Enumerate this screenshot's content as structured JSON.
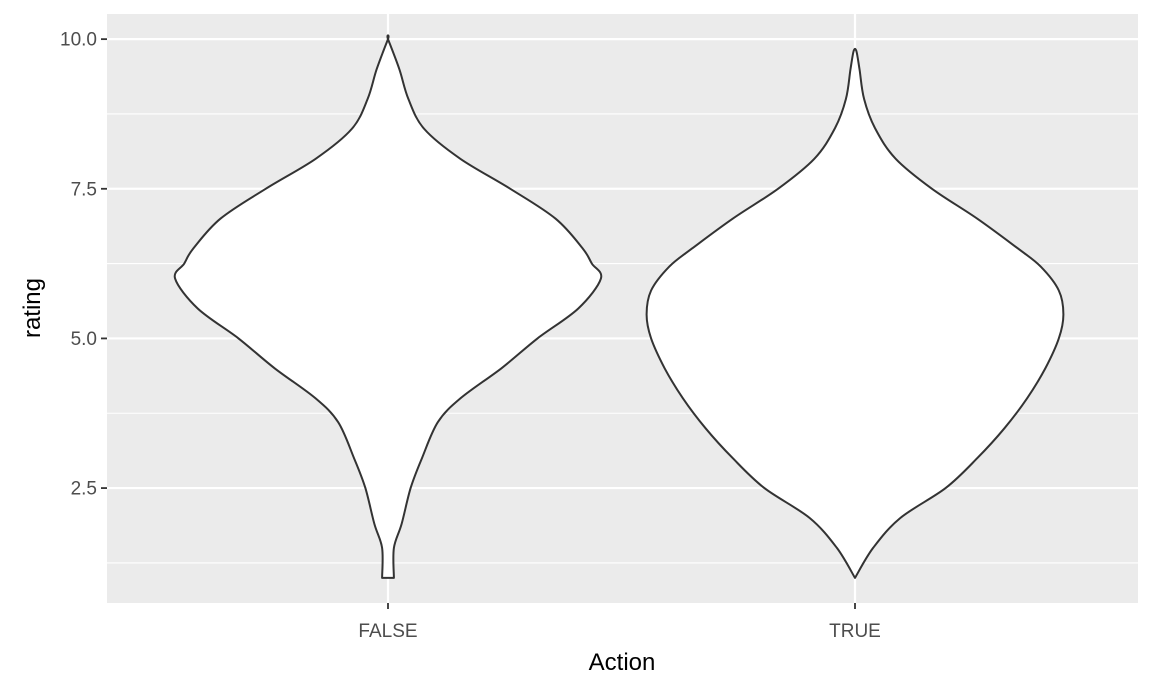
{
  "chart_data": {
    "type": "violin",
    "xlabel": "Action",
    "ylabel": "rating",
    "categories": [
      "FALSE",
      "TRUE"
    ],
    "ylim": [
      0.58,
      10.42
    ],
    "y_ticks": [
      2.5,
      5.0,
      7.5,
      10.0
    ],
    "y_tick_labels": [
      "2.5",
      "5.0",
      "7.5",
      "10.0"
    ],
    "y_minor_ticks": [
      1.25,
      3.75,
      6.25,
      8.75
    ],
    "grid": true,
    "panel_background": "#ebebeb",
    "grid_color": "#ffffff",
    "violin_fill": "#ffffff",
    "violin_outline": "#333333",
    "violins": [
      {
        "category": "FALSE",
        "profile": [
          {
            "y": 1.0,
            "w": 0.013
          },
          {
            "y": 1.5,
            "w": 0.013
          },
          {
            "y": 1.9,
            "w": 0.03
          },
          {
            "y": 2.5,
            "w": 0.05
          },
          {
            "y": 3.0,
            "w": 0.075
          },
          {
            "y": 3.6,
            "w": 0.11
          },
          {
            "y": 4.0,
            "w": 0.16
          },
          {
            "y": 4.5,
            "w": 0.25
          },
          {
            "y": 5.0,
            "w": 0.33
          },
          {
            "y": 5.5,
            "w": 0.42
          },
          {
            "y": 6.0,
            "w": 0.47
          },
          {
            "y": 6.25,
            "w": 0.45
          },
          {
            "y": 6.5,
            "w": 0.43
          },
          {
            "y": 7.0,
            "w": 0.37
          },
          {
            "y": 7.5,
            "w": 0.27
          },
          {
            "y": 8.0,
            "w": 0.16
          },
          {
            "y": 8.5,
            "w": 0.08
          },
          {
            "y": 9.0,
            "w": 0.045
          },
          {
            "y": 9.5,
            "w": 0.025
          },
          {
            "y": 10.0,
            "w": 0.0
          }
        ]
      },
      {
        "category": "TRUE",
        "profile": [
          {
            "y": 1.0,
            "w": 0.0
          },
          {
            "y": 1.5,
            "w": 0.04
          },
          {
            "y": 2.0,
            "w": 0.1
          },
          {
            "y": 2.5,
            "w": 0.2
          },
          {
            "y": 3.0,
            "w": 0.27
          },
          {
            "y": 3.5,
            "w": 0.33
          },
          {
            "y": 4.0,
            "w": 0.38
          },
          {
            "y": 4.5,
            "w": 0.42
          },
          {
            "y": 5.0,
            "w": 0.45
          },
          {
            "y": 5.4,
            "w": 0.46
          },
          {
            "y": 5.8,
            "w": 0.45
          },
          {
            "y": 6.2,
            "w": 0.41
          },
          {
            "y": 6.5,
            "w": 0.36
          },
          {
            "y": 7.0,
            "w": 0.27
          },
          {
            "y": 7.5,
            "w": 0.17
          },
          {
            "y": 8.0,
            "w": 0.09
          },
          {
            "y": 8.5,
            "w": 0.045
          },
          {
            "y": 9.0,
            "w": 0.02
          },
          {
            "y": 9.5,
            "w": 0.01
          },
          {
            "y": 9.8,
            "w": 0.003
          }
        ]
      }
    ]
  }
}
